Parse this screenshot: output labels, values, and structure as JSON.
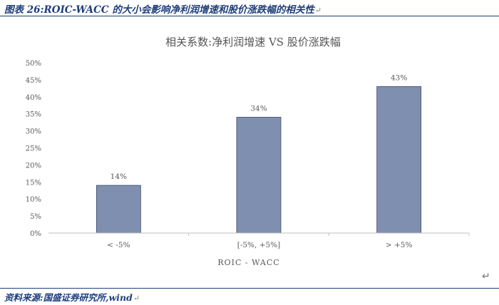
{
  "figure": {
    "title": "图表 26:ROIC-WACC 的大小会影响净利润增速和股价涨跌幅的相关性",
    "source": "资料来源:国盛证券研究所,wind"
  },
  "chart_data": {
    "type": "bar",
    "title": "相关系数:净利润增速 VS 股价涨跌幅",
    "xlabel": "ROIC - WACC",
    "ylabel": "",
    "categories": [
      "< -5%",
      "[-5%, +5%]",
      "> +5%"
    ],
    "values": [
      14,
      34,
      43
    ],
    "data_labels": [
      "14%",
      "34%",
      "43%"
    ],
    "ylim": [
      0,
      50
    ],
    "yticks": [
      "0%",
      "5%",
      "10%",
      "15%",
      "20%",
      "25%",
      "30%",
      "35%",
      "40%",
      "45%",
      "50%"
    ],
    "bar_color": "#7f8fb0",
    "grid": false,
    "legend": "none"
  }
}
